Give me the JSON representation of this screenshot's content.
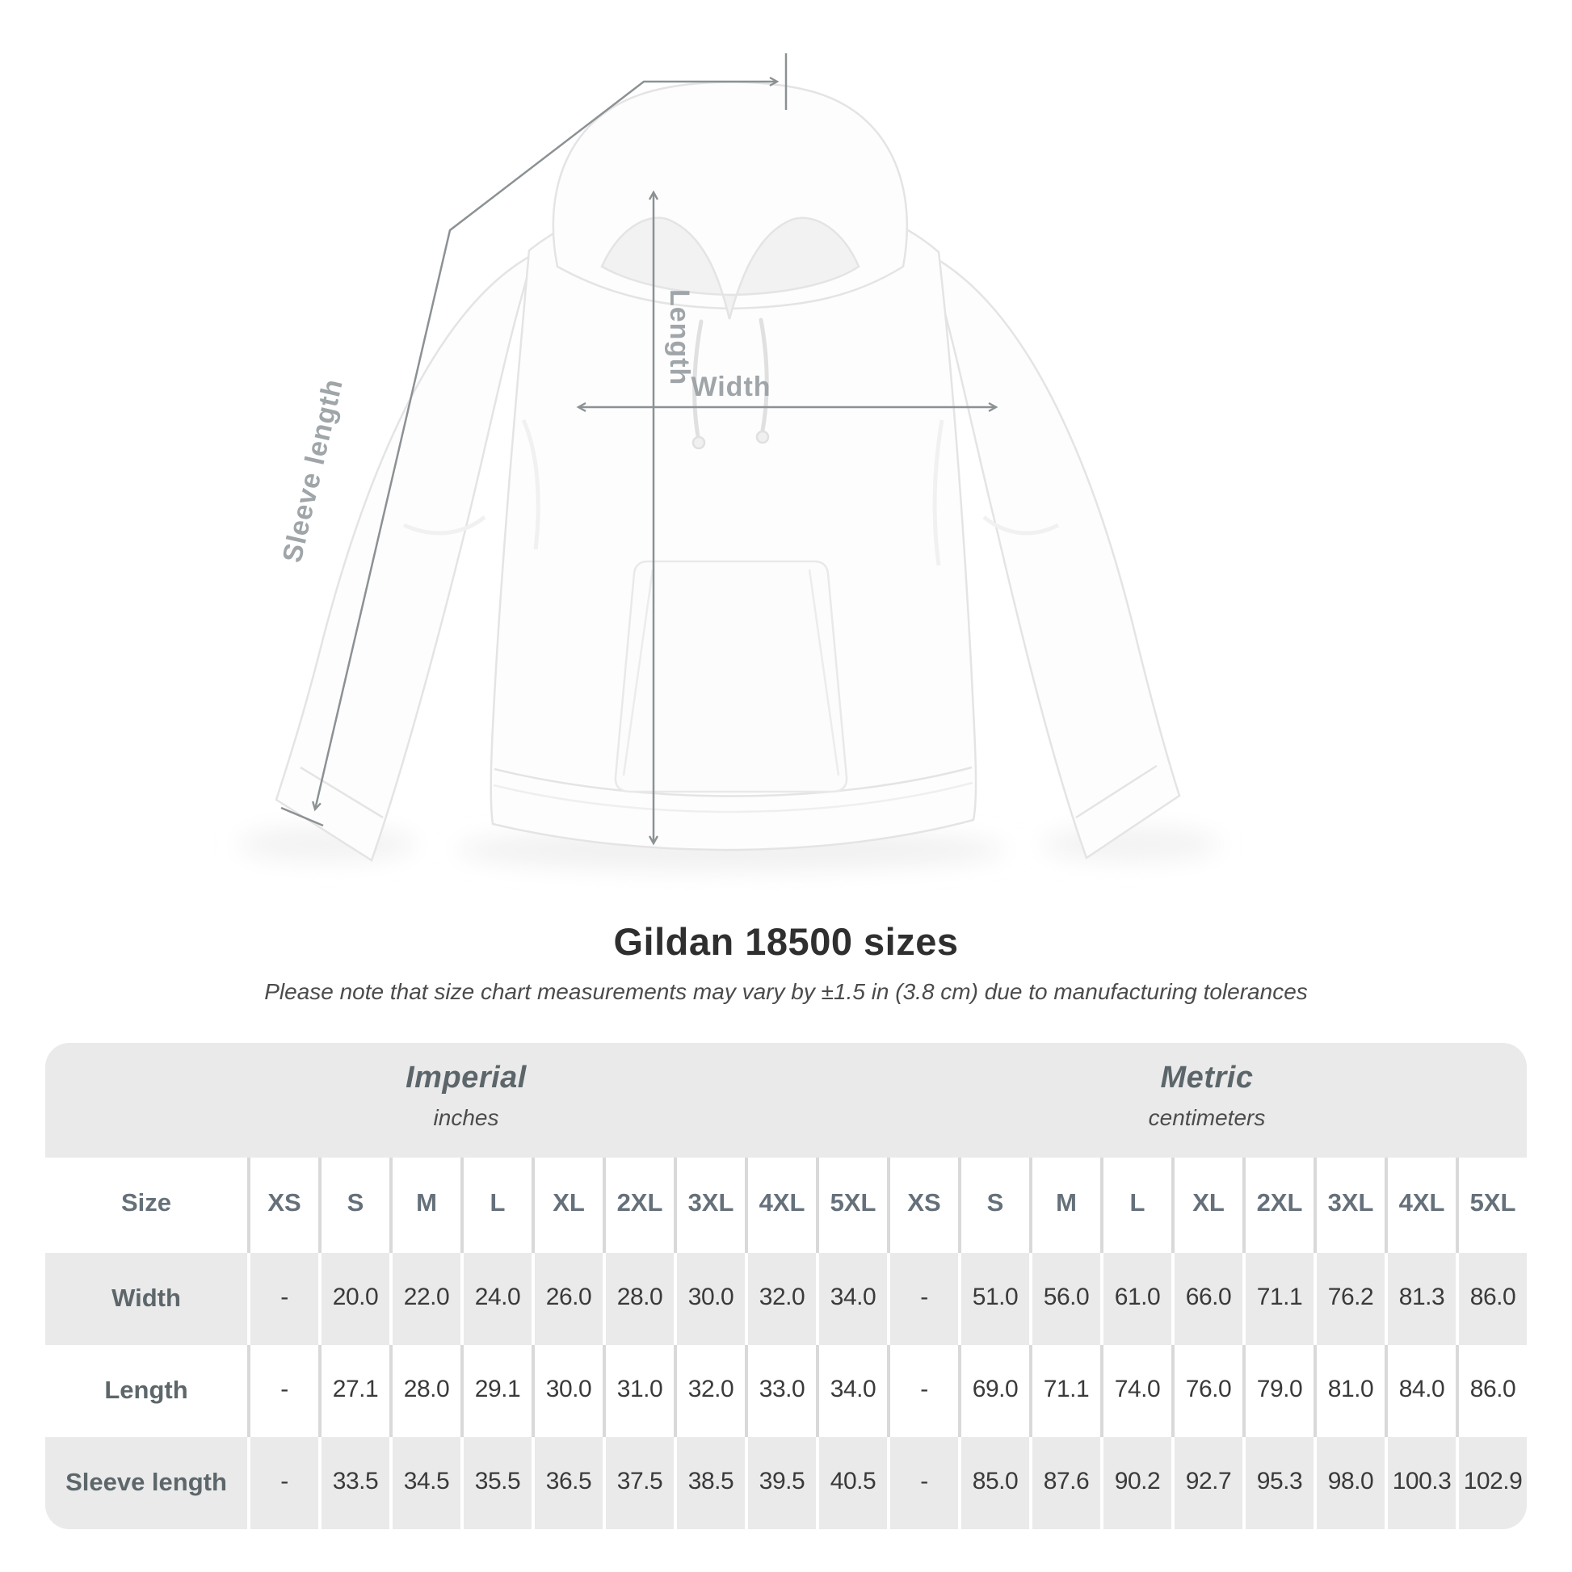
{
  "title": "Gildan 18500 sizes",
  "subtitle": "Please note that size chart measurements may vary by ±1.5 in (3.8 cm) due to manufacturing tolerances",
  "figure": {
    "labels": {
      "sleeve": "Sleeve length",
      "length": "Length",
      "width": "Width"
    }
  },
  "table": {
    "size_label": "Size",
    "groups": [
      {
        "name": "Imperial",
        "unit": "inches"
      },
      {
        "name": "Metric",
        "unit": "centimeters"
      }
    ],
    "sizes": [
      "XS",
      "S",
      "M",
      "L",
      "XL",
      "2XL",
      "3XL",
      "4XL",
      "5XL"
    ],
    "rows": [
      {
        "label": "Width",
        "imperial": [
          "-",
          "20.0",
          "22.0",
          "24.0",
          "26.0",
          "28.0",
          "30.0",
          "32.0",
          "34.0"
        ],
        "metric": [
          "-",
          "51.0",
          "56.0",
          "61.0",
          "66.0",
          "71.1",
          "76.2",
          "81.3",
          "86.0"
        ]
      },
      {
        "label": "Length",
        "imperial": [
          "-",
          "27.1",
          "28.0",
          "29.1",
          "30.0",
          "31.0",
          "32.0",
          "33.0",
          "34.0"
        ],
        "metric": [
          "-",
          "69.0",
          "71.1",
          "74.0",
          "76.0",
          "79.0",
          "81.0",
          "84.0",
          "86.0"
        ]
      },
      {
        "label": "Sleeve length",
        "imperial": [
          "-",
          "33.5",
          "34.5",
          "35.5",
          "36.5",
          "37.5",
          "38.5",
          "39.5",
          "40.5"
        ],
        "metric": [
          "-",
          "85.0",
          "87.6",
          "90.2",
          "92.7",
          "95.3",
          "98.0",
          "100.3",
          "102.9"
        ]
      }
    ]
  },
  "colors": {
    "table_band": "#eaeaea",
    "annotation_line": "#8c9194",
    "annotation_text": "#9fa5a8",
    "value_text": "#3a3a3c",
    "header_text": "#65707a"
  }
}
